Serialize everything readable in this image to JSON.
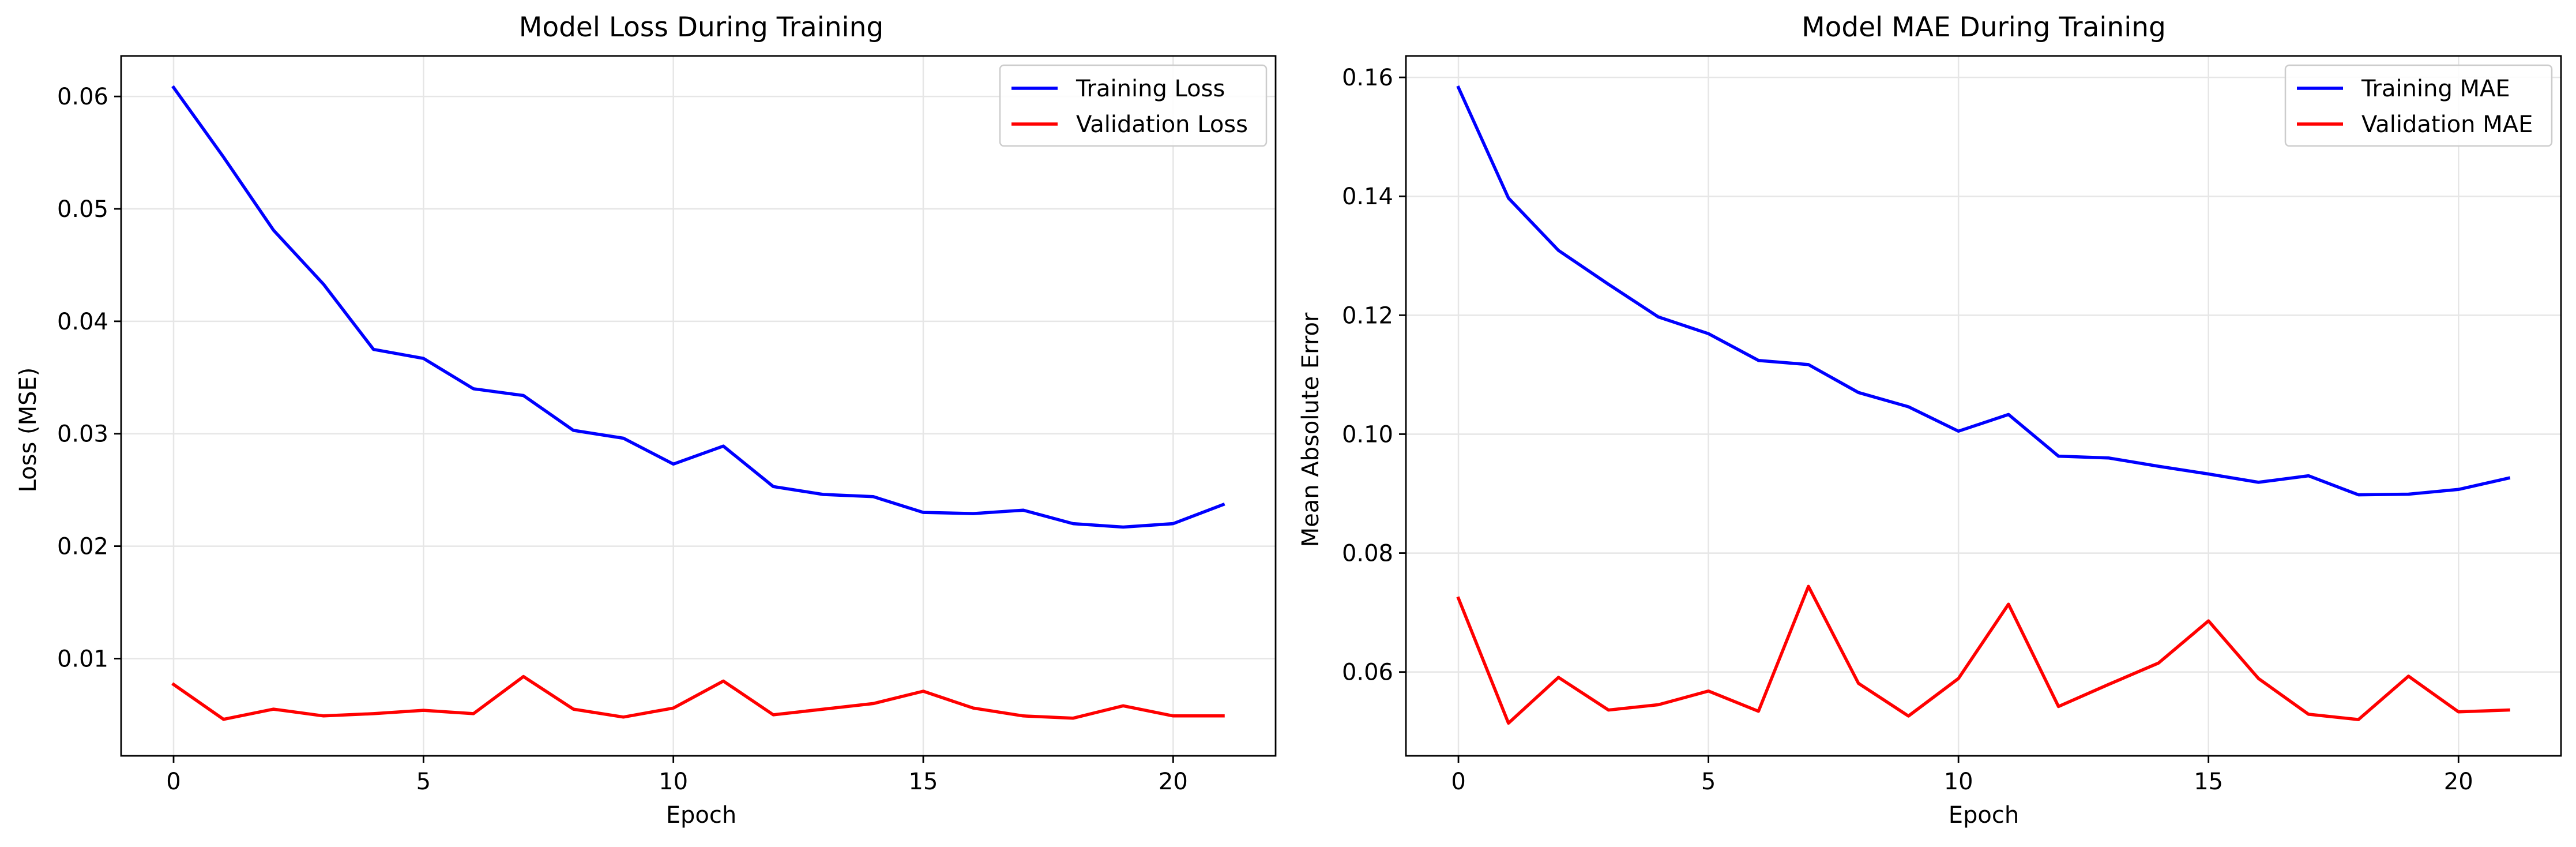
{
  "colors": {
    "training": "#0000ff",
    "validation": "#ff0000",
    "grid": "#e6e6e6",
    "axes": "#000000"
  },
  "chart_data": [
    {
      "type": "line",
      "title": "Model Loss During Training",
      "xlabel": "Epoch",
      "ylabel": "Loss (MSE)",
      "xlim": [
        -1.05,
        22.05
      ],
      "ylim": [
        0.00135,
        0.0636
      ],
      "xticks": [
        0,
        5,
        10,
        15,
        20
      ],
      "xtick_labels": [
        "0",
        "5",
        "10",
        "15",
        "20"
      ],
      "yticks": [
        0.01,
        0.02,
        0.03,
        0.04,
        0.05,
        0.06
      ],
      "ytick_labels": [
        "0.01",
        "0.02",
        "0.03",
        "0.04",
        "0.05",
        "0.06"
      ],
      "grid": true,
      "legend_position": "top-right",
      "x": [
        0,
        1,
        2,
        3,
        4,
        5,
        6,
        7,
        8,
        9,
        10,
        11,
        12,
        13,
        14,
        15,
        16,
        17,
        18,
        19,
        20,
        21
      ],
      "series": [
        {
          "name": "Training Loss",
          "color": "#0000ff",
          "values": [
            0.0608,
            0.0546,
            0.0481,
            0.0433,
            0.0375,
            0.0367,
            0.034,
            0.0334,
            0.0303,
            0.0296,
            0.0273,
            0.0289,
            0.0253,
            0.0246,
            0.0244,
            0.023,
            0.0229,
            0.0232,
            0.022,
            0.0217,
            0.022,
            0.0237
          ]
        },
        {
          "name": "Validation Loss",
          "color": "#ff0000",
          "values": [
            0.0077,
            0.0046,
            0.0055,
            0.0049,
            0.0051,
            0.0054,
            0.0051,
            0.0084,
            0.0055,
            0.0048,
            0.0056,
            0.008,
            0.005,
            0.0055,
            0.006,
            0.0071,
            0.0056,
            0.0049,
            0.0047,
            0.0058,
            0.0049,
            0.0049
          ]
        }
      ]
    },
    {
      "type": "line",
      "title": "Model MAE During Training",
      "xlabel": "Epoch",
      "ylabel": "Mean Absolute Error",
      "xlim": [
        -1.05,
        22.05
      ],
      "ylim": [
        0.0459,
        0.1636
      ],
      "xticks": [
        0,
        5,
        10,
        15,
        20
      ],
      "xtick_labels": [
        "0",
        "5",
        "10",
        "15",
        "20"
      ],
      "yticks": [
        0.06,
        0.08,
        0.1,
        0.12,
        0.14,
        0.16
      ],
      "ytick_labels": [
        "0.06",
        "0.08",
        "0.10",
        "0.12",
        "0.14",
        "0.16"
      ],
      "grid": true,
      "legend_position": "top-right",
      "x": [
        0,
        1,
        2,
        3,
        4,
        5,
        6,
        7,
        8,
        9,
        10,
        11,
        12,
        13,
        14,
        15,
        16,
        17,
        18,
        19,
        20,
        21
      ],
      "series": [
        {
          "name": "Training MAE",
          "color": "#0000ff",
          "values": [
            0.1583,
            0.1397,
            0.1309,
            0.1252,
            0.1197,
            0.1169,
            0.1124,
            0.1117,
            0.107,
            0.1046,
            0.1005,
            0.1033,
            0.0963,
            0.096,
            0.0946,
            0.0933,
            0.0919,
            0.093,
            0.0898,
            0.0899,
            0.0907,
            0.0926
          ]
        },
        {
          "name": "Validation MAE",
          "color": "#ff0000",
          "values": [
            0.0724,
            0.0514,
            0.0591,
            0.0536,
            0.0545,
            0.0568,
            0.0534,
            0.0744,
            0.0581,
            0.0526,
            0.0589,
            0.0714,
            0.0542,
            0.0579,
            0.0615,
            0.0686,
            0.0589,
            0.0529,
            0.052,
            0.0593,
            0.0533,
            0.0536
          ]
        }
      ]
    }
  ]
}
